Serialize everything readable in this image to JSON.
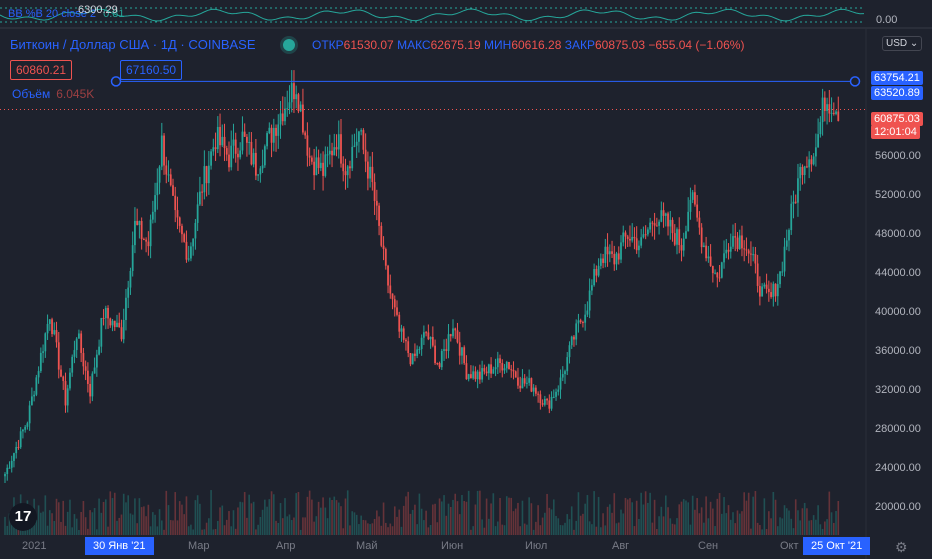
{
  "indicator": {
    "label": "BB %B 20 close 2",
    "value": "0.81",
    "axis_value": "0.00"
  },
  "symbol": {
    "title": "Биткоин / Доллар США · 1Д · COINBASE"
  },
  "ohlc": {
    "open_label": "ОТКР",
    "open": "61530.07",
    "high_label": "МАКС",
    "high": "62675.19",
    "low_label": "МИН",
    "low": "60616.28",
    "close_label": "ЗАКР",
    "close": "60875.03",
    "change": "−655.04 (−1.06%)"
  },
  "trade": {
    "sell": "60860.21",
    "spread": "6300.29",
    "buy": "67160.50"
  },
  "volume": {
    "label": "Объём",
    "value": "6.045K"
  },
  "currency": "USD",
  "price_labels": {
    "line_top": "63754.21",
    "line_bottom": "63520.89",
    "last_price": "60875.03",
    "countdown": "12:01:04"
  },
  "y_ticks": [
    "56000.00",
    "52000.00",
    "48000.00",
    "44000.00",
    "40000.00",
    "36000.00",
    "32000.00",
    "28000.00",
    "24000.00",
    "20000.00"
  ],
  "x_ticks": [
    {
      "label": "2021",
      "hl": false
    },
    {
      "label": "30 Янв '21",
      "hl": true
    },
    {
      "label": "Мар",
      "hl": false
    },
    {
      "label": "Апр",
      "hl": false
    },
    {
      "label": "Май",
      "hl": false
    },
    {
      "label": "Июн",
      "hl": false
    },
    {
      "label": "Июл",
      "hl": false
    },
    {
      "label": "Авг",
      "hl": false
    },
    {
      "label": "Сен",
      "hl": false
    },
    {
      "label": "Окт",
      "hl": false
    },
    {
      "label": "25 Окт '21",
      "hl": true
    }
  ],
  "colors": {
    "up": "#26a69a",
    "down": "#ef5350",
    "accent": "#2962ff",
    "bg": "#1e222d"
  },
  "logo_text": "17",
  "chart_data": {
    "type": "candlestick",
    "ylim": [
      18000,
      68000
    ],
    "anchors": [
      [
        0,
        23500
      ],
      [
        10,
        29000
      ],
      [
        20,
        40000
      ],
      [
        27,
        31000
      ],
      [
        32,
        38000
      ],
      [
        38,
        32000
      ],
      [
        44,
        40000
      ],
      [
        52,
        38000
      ],
      [
        58,
        49000
      ],
      [
        64,
        47000
      ],
      [
        70,
        57500
      ],
      [
        76,
        49500
      ],
      [
        82,
        46000
      ],
      [
        88,
        53000
      ],
      [
        94,
        58000
      ],
      [
        100,
        56000
      ],
      [
        106,
        58000
      ],
      [
        112,
        55000
      ],
      [
        118,
        58000
      ],
      [
        124,
        61000
      ],
      [
        130,
        63500
      ],
      [
        136,
        56000
      ],
      [
        142,
        54500
      ],
      [
        148,
        58000
      ],
      [
        152,
        55000
      ],
      [
        158,
        58500
      ],
      [
        164,
        53000
      ],
      [
        170,
        44000
      ],
      [
        176,
        38000
      ],
      [
        182,
        35000
      ],
      [
        188,
        38000
      ],
      [
        194,
        34500
      ],
      [
        200,
        39000
      ],
      [
        206,
        34000
      ],
      [
        212,
        33500
      ],
      [
        218,
        34500
      ],
      [
        224,
        35000
      ],
      [
        230,
        33000
      ],
      [
        236,
        32500
      ],
      [
        242,
        30500
      ],
      [
        248,
        33000
      ],
      [
        254,
        37500
      ],
      [
        260,
        41000
      ],
      [
        266,
        46000
      ],
      [
        272,
        45500
      ],
      [
        278,
        48000
      ],
      [
        284,
        47000
      ],
      [
        290,
        50000
      ],
      [
        296,
        49000
      ],
      [
        302,
        47000
      ],
      [
        306,
        52000
      ],
      [
        312,
        47000
      ],
      [
        318,
        43500
      ],
      [
        324,
        48000
      ],
      [
        330,
        47500
      ],
      [
        334,
        45000
      ],
      [
        338,
        42000
      ],
      [
        342,
        41500
      ],
      [
        346,
        44000
      ],
      [
        350,
        49000
      ],
      [
        356,
        55500
      ],
      [
        362,
        57000
      ],
      [
        366,
        62000
      ],
      [
        370,
        61500
      ],
      [
        372,
        60875
      ]
    ]
  }
}
